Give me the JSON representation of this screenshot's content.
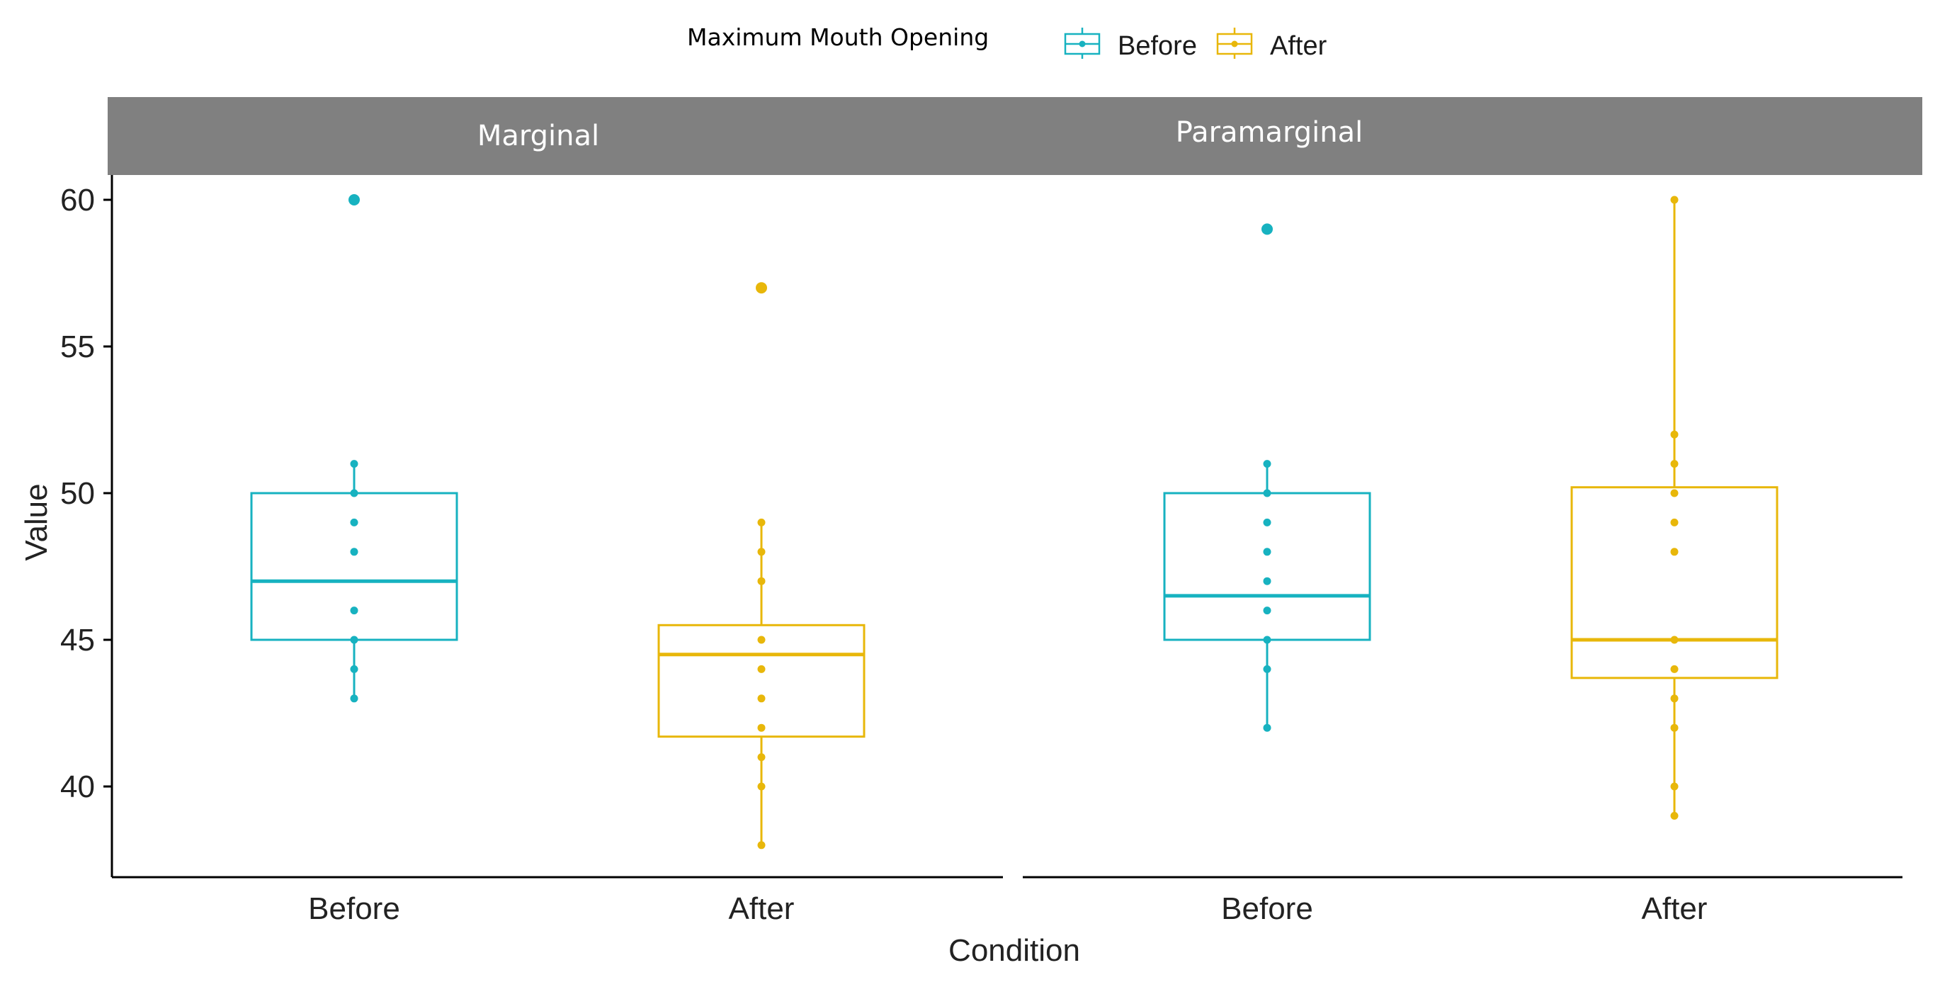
{
  "chart_data": {
    "type": "boxplot",
    "title": "",
    "xlabel": "Condition",
    "ylabel": "Value",
    "ylim": [
      37,
      61
    ],
    "yticks": [
      40,
      45,
      50,
      55,
      60
    ],
    "categories": [
      "Before",
      "After"
    ],
    "legend": {
      "title": "Maximum Mouth Opening",
      "position": "top",
      "entries": [
        "Before",
        "After"
      ]
    },
    "colors": {
      "Before": "#17b2c0",
      "After": "#e8b70a"
    },
    "facets": [
      {
        "label": "Marginal",
        "boxes": [
          {
            "group": "Before",
            "q1": 45,
            "median": 47,
            "q3": 50,
            "whisker_low": 43,
            "whisker_high": 51,
            "points": [
              43,
              44,
              45,
              46,
              48,
              49,
              50,
              51
            ],
            "outliers": [
              60
            ]
          },
          {
            "group": "After",
            "q1": 41.7,
            "median": 44.5,
            "q3": 45.5,
            "whisker_low": 38,
            "whisker_high": 49,
            "points": [
              38,
              40,
              41,
              42,
              43,
              44,
              45,
              47,
              48,
              49
            ],
            "outliers": [
              57
            ]
          }
        ]
      },
      {
        "label": "Paramarginal",
        "boxes": [
          {
            "group": "Before",
            "q1": 45,
            "median": 46.5,
            "q3": 50,
            "whisker_low": 42,
            "whisker_high": 51,
            "points": [
              42,
              44,
              45,
              46,
              47,
              48,
              49,
              50,
              51
            ],
            "outliers": [
              59
            ]
          },
          {
            "group": "After",
            "q1": 43.7,
            "median": 45,
            "q3": 50.2,
            "whisker_low": 39,
            "whisker_high": 60,
            "points": [
              39,
              40,
              42,
              43,
              44,
              45,
              48,
              49,
              50,
              51,
              52,
              60
            ],
            "outliers": []
          }
        ]
      }
    ]
  }
}
